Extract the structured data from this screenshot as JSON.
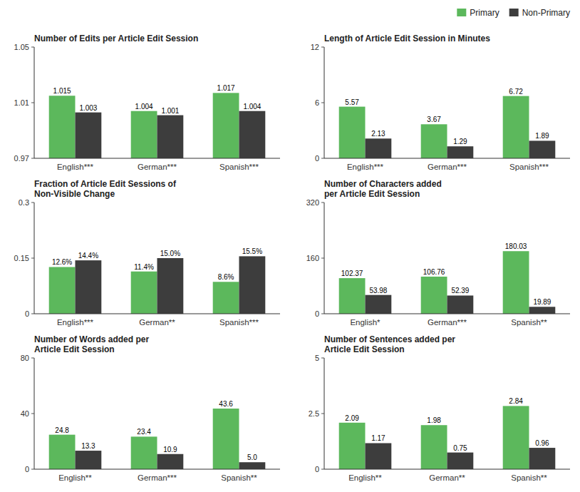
{
  "chart_data": [
    {
      "type": "bar",
      "title": "Number of Edits per Article Edit Session",
      "categories": [
        "English***",
        "German***",
        "Spanish***"
      ],
      "series": [
        {
          "name": "Primary",
          "color": "#5cb85c",
          "values": [
            1.015,
            1.004,
            1.017
          ]
        },
        {
          "name": "Non-Primary",
          "color": "#3d3d3d",
          "values": [
            1.003,
            1.001,
            1.004
          ]
        }
      ],
      "ylim": [
        0.97,
        1.05
      ],
      "yticks": [
        0.97,
        1.01,
        1.05
      ],
      "data_labels": true,
      "legend": "upper right"
    },
    {
      "type": "bar",
      "title": "Length of Article Edit Session in Minutes",
      "categories": [
        "English***",
        "German***",
        "Spanish***"
      ],
      "series": [
        {
          "name": "Primary",
          "color": "#5cb85c",
          "values": [
            5.57,
            3.67,
            6.72
          ]
        },
        {
          "name": "Non-Primary",
          "color": "#3d3d3d",
          "values": [
            2.13,
            1.29,
            1.89
          ]
        }
      ],
      "ylim": [
        0,
        12
      ],
      "yticks": [
        0,
        6,
        12
      ],
      "data_labels": true
    },
    {
      "type": "bar",
      "title": "Fraction of Article Edit Sessions of\nNon-Visible Change",
      "categories": [
        "English***",
        "German**",
        "Spanish***"
      ],
      "series": [
        {
          "name": "Primary",
          "color": "#5cb85c",
          "values": [
            0.126,
            0.114,
            0.086
          ],
          "value_labels": [
            "12.6%",
            "11.4%",
            "8.6%"
          ]
        },
        {
          "name": "Non-Primary",
          "color": "#3d3d3d",
          "values": [
            0.144,
            0.15,
            0.155
          ],
          "value_labels": [
            "14.4%",
            "15.0%",
            "15.5%"
          ]
        }
      ],
      "ylim": [
        0,
        0.3
      ],
      "yticks": [
        0,
        0.15,
        0.3
      ],
      "data_labels": true
    },
    {
      "type": "bar",
      "title": "Number of Characters added\nper Article Edit Session",
      "categories": [
        "English*",
        "German***",
        "Spanish**"
      ],
      "series": [
        {
          "name": "Primary",
          "color": "#5cb85c",
          "values": [
            102.37,
            106.76,
            180.03
          ]
        },
        {
          "name": "Non-Primary",
          "color": "#3d3d3d",
          "values": [
            53.98,
            52.39,
            19.89
          ]
        }
      ],
      "ylim": [
        0,
        320
      ],
      "yticks": [
        0,
        160,
        320
      ],
      "data_labels": true
    },
    {
      "type": "bar",
      "title": "Number of Words added per\nArticle Edit Session",
      "categories": [
        "English**",
        "German***",
        "Spanish**"
      ],
      "series": [
        {
          "name": "Primary",
          "color": "#5cb85c",
          "values": [
            24.8,
            23.4,
            43.6
          ]
        },
        {
          "name": "Non-Primary",
          "color": "#3d3d3d",
          "values": [
            13.3,
            10.9,
            5.0
          ],
          "value_labels": [
            "13.3",
            "10.9",
            "5.0"
          ]
        }
      ],
      "ylim": [
        0,
        80
      ],
      "yticks": [
        0,
        40,
        80
      ],
      "data_labels": true
    },
    {
      "type": "bar",
      "title": "Number of Sentences added per\nArticle Edit Session",
      "categories": [
        "English**",
        "German**",
        "Spanish**"
      ],
      "series": [
        {
          "name": "Primary",
          "color": "#5cb85c",
          "values": [
            2.09,
            1.98,
            2.84
          ]
        },
        {
          "name": "Non-Primary",
          "color": "#3d3d3d",
          "values": [
            1.17,
            0.75,
            0.96
          ]
        }
      ],
      "ylim": [
        0,
        5
      ],
      "yticks": [
        0,
        2.5,
        5
      ],
      "data_labels": true
    }
  ]
}
